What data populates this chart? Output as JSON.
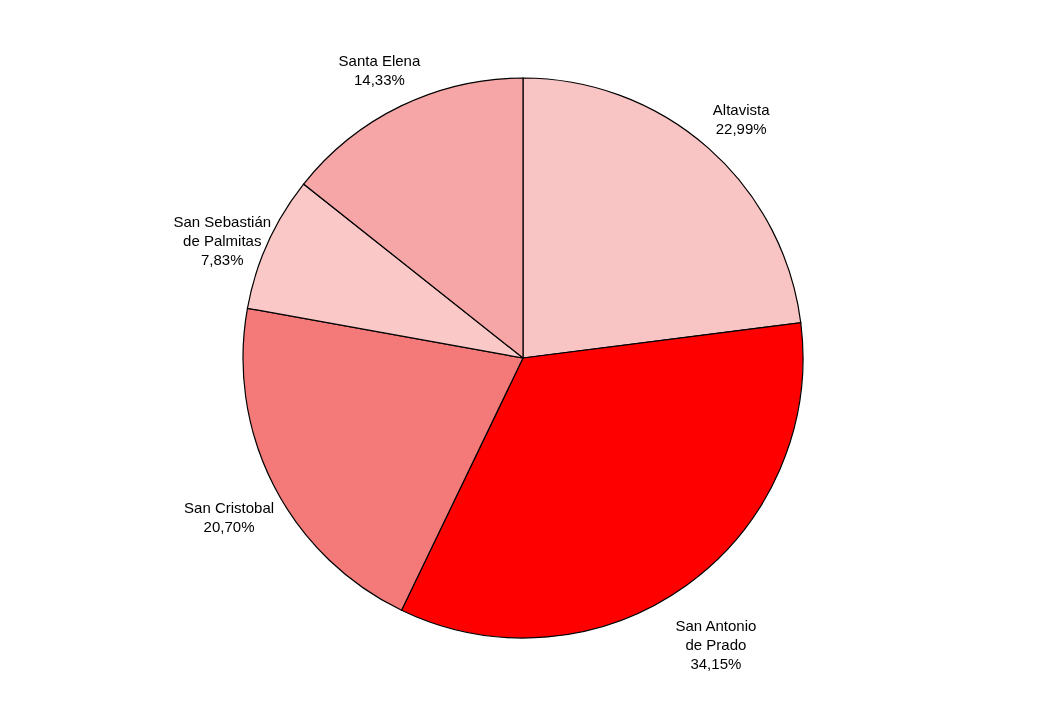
{
  "chart_data": {
    "type": "pie",
    "categories": [
      "Altavista",
      "San Antonio\nde Prado",
      "San Cristobal",
      "San Sebastián\nde Palmitas",
      "Santa Elena"
    ],
    "values": [
      22.99,
      34.15,
      20.7,
      7.83,
      14.33
    ],
    "value_labels": [
      "22,99%",
      "34,15%",
      "20,70%",
      "7,83%",
      "14,33%"
    ],
    "colors": [
      "#f9c4c4",
      "#ff0000",
      "#f47a7a",
      "#fbc8c8",
      "#f6a6a6"
    ],
    "legend": false
  }
}
